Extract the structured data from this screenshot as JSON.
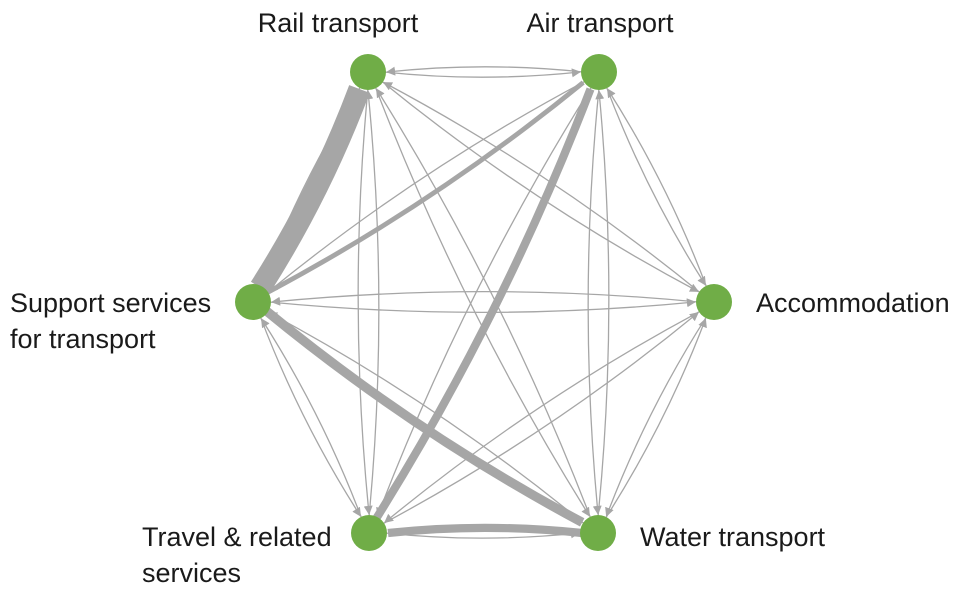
{
  "colors": {
    "node": "#70ad47",
    "edge": "#a6a6a6",
    "background": "#ffffff",
    "label": "#1a1a1a"
  },
  "nodes": [
    {
      "id": "rail",
      "label_lines": [
        "Rail transport"
      ]
    },
    {
      "id": "air",
      "label_lines": [
        "Air transport"
      ]
    },
    {
      "id": "accommodation",
      "label_lines": [
        "Accommodation"
      ]
    },
    {
      "id": "water",
      "label_lines": [
        "Water transport"
      ]
    },
    {
      "id": "travel",
      "label_lines": [
        "Travel & related",
        "services"
      ]
    },
    {
      "id": "support",
      "label_lines": [
        "Support services",
        "for transport"
      ]
    }
  ],
  "edges": [
    {
      "from": "support",
      "to": "rail",
      "weight": 10
    },
    {
      "from": "travel",
      "to": "air",
      "weight": 4
    },
    {
      "from": "support",
      "to": "water",
      "weight": 4.5
    },
    {
      "from": "water",
      "to": "travel",
      "weight": 4
    },
    {
      "from": "support",
      "to": "air",
      "weight": 2.5
    },
    {
      "from": "rail",
      "to": "air",
      "weight": 1
    },
    {
      "from": "air",
      "to": "rail",
      "weight": 1
    },
    {
      "from": "rail",
      "to": "accommodation",
      "weight": 1
    },
    {
      "from": "accommodation",
      "to": "rail",
      "weight": 1
    },
    {
      "from": "rail",
      "to": "water",
      "weight": 1
    },
    {
      "from": "water",
      "to": "rail",
      "weight": 1
    },
    {
      "from": "rail",
      "to": "travel",
      "weight": 1
    },
    {
      "from": "travel",
      "to": "rail",
      "weight": 1
    },
    {
      "from": "rail",
      "to": "support",
      "weight": 1
    },
    {
      "from": "air",
      "to": "accommodation",
      "weight": 1
    },
    {
      "from": "accommodation",
      "to": "air",
      "weight": 1
    },
    {
      "from": "air",
      "to": "water",
      "weight": 1
    },
    {
      "from": "water",
      "to": "air",
      "weight": 1
    },
    {
      "from": "air",
      "to": "travel",
      "weight": 1
    },
    {
      "from": "air",
      "to": "support",
      "weight": 1
    },
    {
      "from": "accommodation",
      "to": "water",
      "weight": 1
    },
    {
      "from": "water",
      "to": "accommodation",
      "weight": 1
    },
    {
      "from": "accommodation",
      "to": "travel",
      "weight": 1
    },
    {
      "from": "travel",
      "to": "accommodation",
      "weight": 1
    },
    {
      "from": "accommodation",
      "to": "support",
      "weight": 1
    },
    {
      "from": "support",
      "to": "accommodation",
      "weight": 1
    },
    {
      "from": "travel",
      "to": "water",
      "weight": 1
    },
    {
      "from": "water",
      "to": "support",
      "weight": 1
    },
    {
      "from": "travel",
      "to": "support",
      "weight": 1
    },
    {
      "from": "support",
      "to": "travel",
      "weight": 1
    }
  ]
}
